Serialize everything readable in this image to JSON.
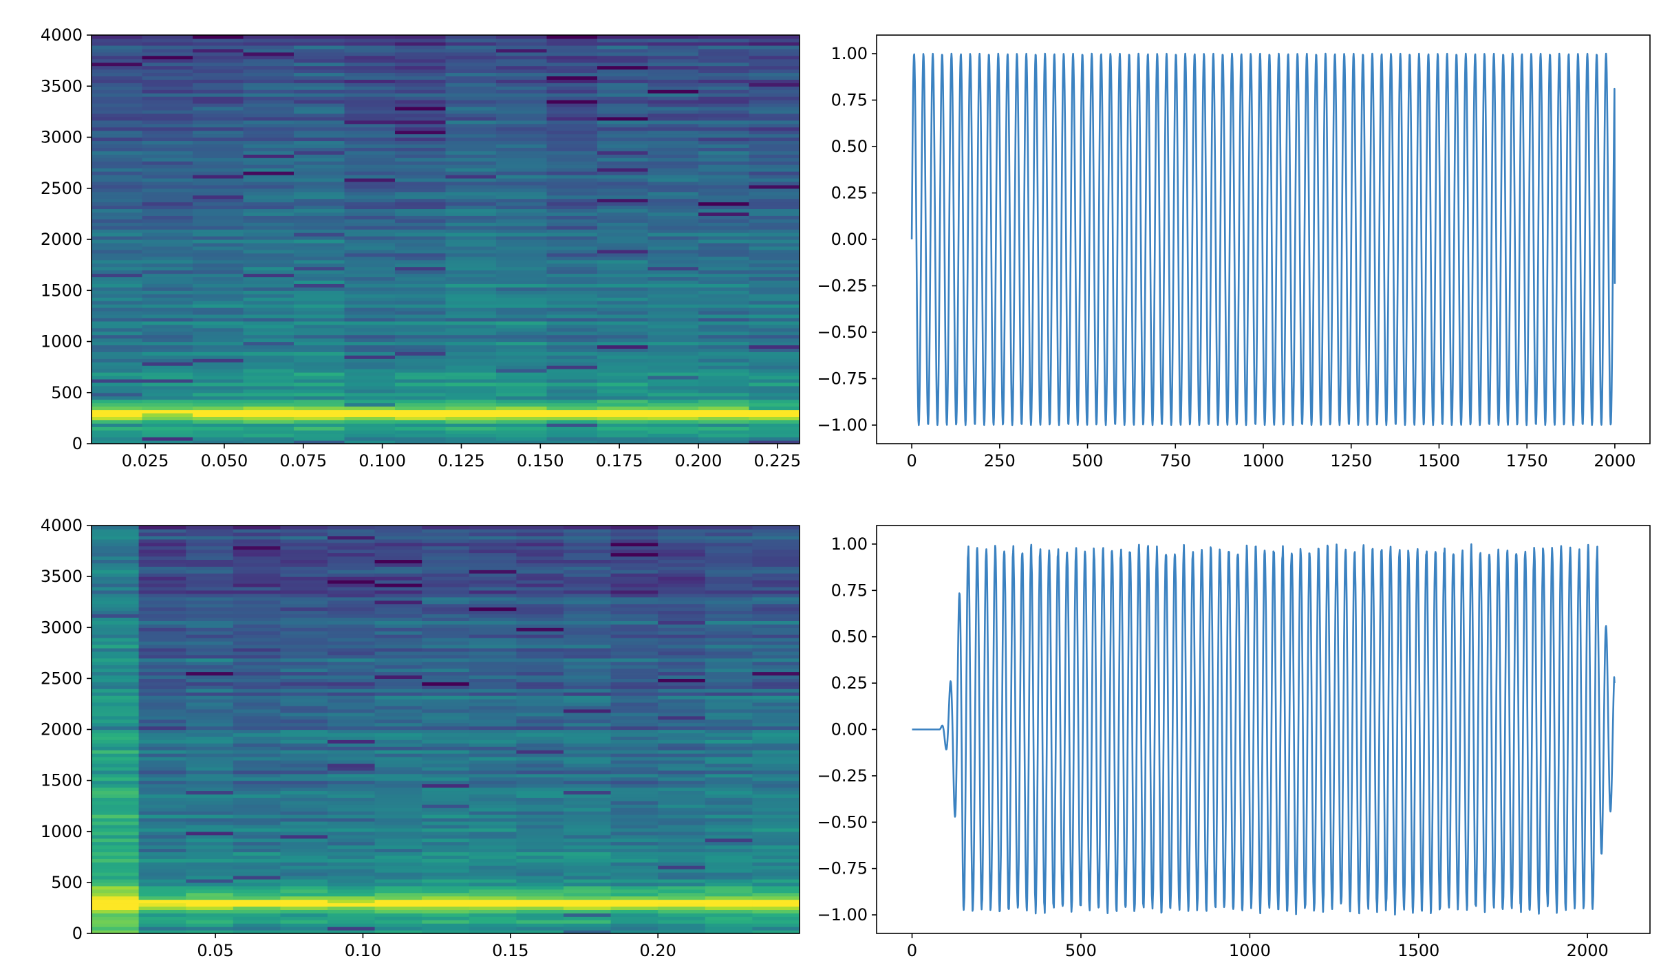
{
  "chart_data": [
    {
      "type": "heatmap",
      "title": "",
      "xlabel": "",
      "ylabel": "",
      "xlim": [
        0.008,
        0.232
      ],
      "ylim": [
        0,
        4000
      ],
      "x_ticks": [
        0.025,
        0.05,
        0.075,
        0.1,
        0.125,
        0.15,
        0.175,
        0.2,
        0.225
      ],
      "x_tick_labels": [
        "0.025",
        "0.050",
        "0.075",
        "0.100",
        "0.125",
        "0.150",
        "0.175",
        "0.200",
        "0.225"
      ],
      "y_ticks": [
        0,
        500,
        1000,
        1500,
        2000,
        2500,
        3000,
        3500,
        4000
      ],
      "y_tick_labels": [
        "0",
        "500",
        "1000",
        "1500",
        "2000",
        "2500",
        "3000",
        "3500",
        "4000"
      ],
      "time_bins": 14,
      "freq_bins": 120,
      "peak_frequency": 300,
      "colormap": "viridis",
      "colors": [
        "#440154",
        "#472d7b",
        "#3b528b",
        "#2c728e",
        "#21918c",
        "#28ae80",
        "#5ec962",
        "#addc30",
        "#fde725"
      ],
      "grid": false
    },
    {
      "type": "line",
      "title": "",
      "xlabel": "",
      "ylabel": "",
      "xlim": [
        -100,
        2100
      ],
      "ylim": [
        -1.1,
        1.1
      ],
      "x_ticks": [
        0,
        250,
        500,
        750,
        1000,
        1250,
        1500,
        1750,
        2000
      ],
      "x_tick_labels": [
        "0",
        "250",
        "500",
        "750",
        "1000",
        "1250",
        "1500",
        "1750",
        "2000"
      ],
      "y_ticks": [
        1.0,
        0.75,
        0.5,
        0.25,
        0.0,
        -0.25,
        -0.5,
        -0.75,
        -1.0
      ],
      "y_tick_labels": [
        "1.00",
        "0.75",
        "0.50",
        "0.25",
        "0.00",
        "−0.25",
        "−0.50",
        "−0.75",
        "−1.00"
      ],
      "signal": {
        "samples": 2000,
        "period_samples": 26.6,
        "amplitude": 1.0,
        "end_value": -0.24
      },
      "series_color": "#3b82c1",
      "grid": false
    },
    {
      "type": "heatmap",
      "title": "",
      "xlabel": "",
      "ylabel": "",
      "xlim": [
        0.008,
        0.248
      ],
      "ylim": [
        0,
        4000
      ],
      "x_ticks": [
        0.05,
        0.1,
        0.15,
        0.2
      ],
      "x_tick_labels": [
        "0.05",
        "0.10",
        "0.15",
        "0.20"
      ],
      "y_ticks": [
        0,
        500,
        1000,
        1500,
        2000,
        2500,
        3000,
        3500,
        4000
      ],
      "y_tick_labels": [
        "0",
        "500",
        "1000",
        "1500",
        "2000",
        "2500",
        "3000",
        "3500",
        "4000"
      ],
      "time_bins": 15,
      "freq_bins": 120,
      "peak_frequency": 300,
      "colormap": "viridis",
      "colors": [
        "#440154",
        "#472d7b",
        "#3b528b",
        "#2c728e",
        "#21918c",
        "#28ae80",
        "#5ec962",
        "#addc30",
        "#fde725"
      ],
      "grid": false
    },
    {
      "type": "line",
      "title": "",
      "xlabel": "",
      "ylabel": "",
      "xlim": [
        -105,
        2185
      ],
      "ylim": [
        -1.1,
        1.1
      ],
      "x_ticks": [
        0,
        500,
        1000,
        1500,
        2000
      ],
      "x_tick_labels": [
        "0",
        "500",
        "1000",
        "1500",
        "2000"
      ],
      "y_ticks": [
        1.0,
        0.75,
        0.5,
        0.25,
        0.0,
        -0.25,
        -0.5,
        -0.75,
        -1.0
      ],
      "y_tick_labels": [
        "1.00",
        "0.75",
        "0.50",
        "0.25",
        "0.00",
        "−0.25",
        "−0.50",
        "−0.75",
        "−1.00"
      ],
      "signal": {
        "samples": 2080,
        "silence_until": 80,
        "onset_until": 150,
        "offset_from": 2030,
        "period_samples": 26.6,
        "amplitude": 0.97,
        "end_value": 0.25
      },
      "series_color": "#3b82c1",
      "grid": false
    }
  ]
}
